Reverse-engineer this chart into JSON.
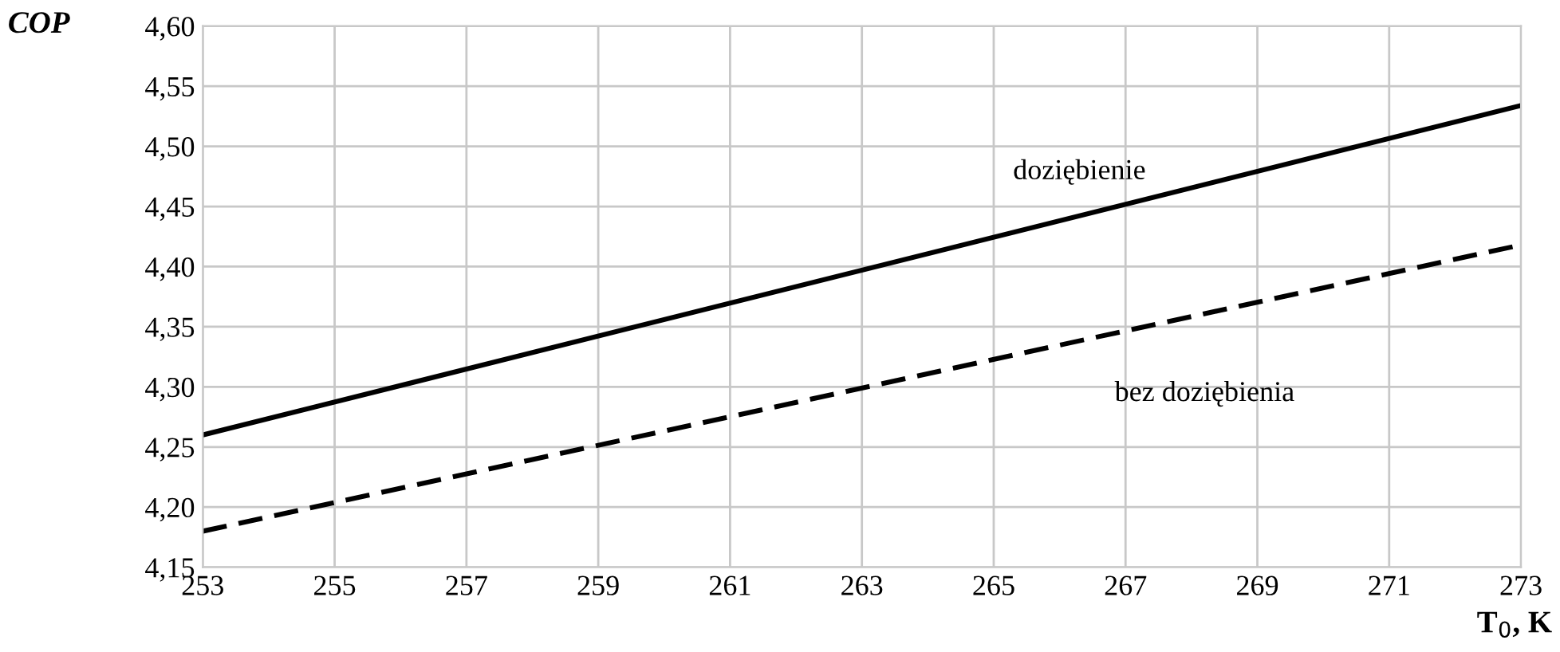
{
  "chart_data": {
    "type": "line",
    "xlabel": "T$_{0}$, K",
    "ylabel": "COP",
    "x": [
      253,
      273
    ],
    "series": [
      {
        "color": "#000000",
        "line_style": "solid",
        "values": [
          4.26,
          4.534
        ]
      },
      {
        "color": "#000000",
        "line_style": "dashed",
        "values": [
          4.18,
          4.418
        ]
      }
    ],
    "xlim": [
      253,
      273
    ],
    "xticks": [
      253,
      255,
      257,
      259,
      261,
      263,
      265,
      267,
      269,
      271,
      273
    ],
    "ylim": [
      4.15,
      4.6
    ],
    "yticks": [
      {
        "value": 4.15,
        "label": "4,15"
      },
      {
        "value": 4.2,
        "label": "4,20"
      },
      {
        "value": 4.25,
        "label": "4,25"
      },
      {
        "value": 4.3,
        "label": "4,30"
      },
      {
        "value": 4.35,
        "label": "4,35"
      },
      {
        "value": 4.4,
        "label": "4,40"
      },
      {
        "value": 4.45,
        "label": "4,45"
      },
      {
        "value": 4.5,
        "label": "4,50"
      },
      {
        "value": 4.55,
        "label": "4,55"
      },
      {
        "value": 4.6,
        "label": "4,60"
      }
    ],
    "grid": true,
    "marker": "none",
    "annotations": [
      "doziębienie",
      "bez doziębienia"
    ]
  }
}
